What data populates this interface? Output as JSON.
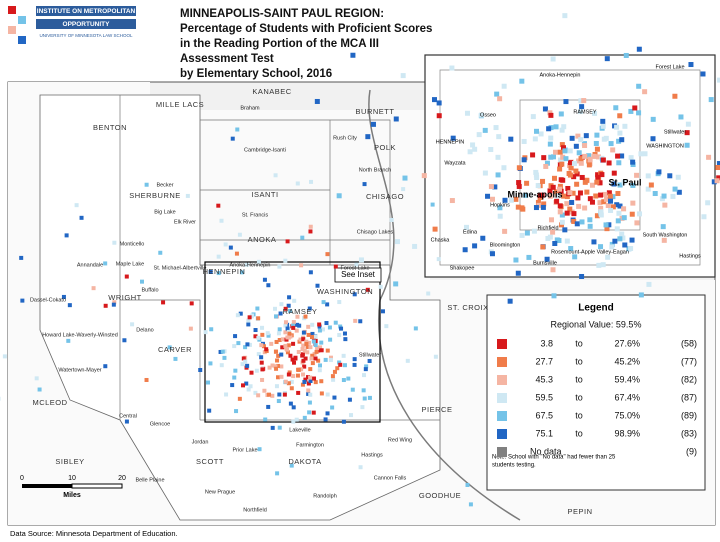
{
  "header": {
    "logo": [
      "INSTITUTE ON METROPOLITAN",
      "OPPORTUNITY",
      "UNIVERSITY OF MINNESOTA LAW SCHOOL"
    ],
    "title": [
      "MINNEAPOLIS-SAINT PAUL REGION:",
      "Percentage of Students with Proficient Scores",
      "in the Reading Portion of the MCA III",
      "Assessment Test",
      "by Elementary School, 2016"
    ]
  },
  "map": {
    "counties": [
      "MILLE LACS",
      "BENTON",
      "KANABEC",
      "BURNETT",
      "POLK",
      "ISANTI",
      "SHERBURNE",
      "CHISAGO",
      "ANOKA",
      "WRIGHT",
      "HENNEPIN",
      "RAMSEY",
      "WASHINGTON",
      "ST. CROIX",
      "CARVER",
      "MCLEOD",
      "SCOTT",
      "DAKOTA",
      "PIERCE",
      "SIBLEY",
      "GOODHUE",
      "PEPIN"
    ],
    "cities": [
      "Braham",
      "Rush City",
      "Cambridge-Isanti",
      "North Branch",
      "Becker",
      "Elk River",
      "Big Lake",
      "St. Francis",
      "Chisago Lakes",
      "Monticello",
      "Annandale",
      "Maple Lake",
      "Buffalo",
      "St. Michael-Albertville",
      "Delano",
      "Dassel-Cokato",
      "Howard Lake-Waverly-Winsted",
      "Watertown-Mayer",
      "Central",
      "Glencoe",
      "Belle Plaine",
      "New Prague",
      "Jordan",
      "Prior Lake",
      "Farmington",
      "Hastings",
      "Randolph",
      "Northfield",
      "Cannon Falls",
      "Red Wing",
      "Lakeville",
      "Forest Lake",
      "Stillwater",
      "Anoka-Hennepin"
    ],
    "see_inset": "See Inset",
    "inset_labels": [
      "Forest Lake",
      "Anoka-Hennepin",
      "RAMSEY",
      "HENNEPIN",
      "WASHINGTON",
      "Minne-apolis",
      "St. Paul",
      "Stillwater",
      "Osseo",
      "Wayzata",
      "Hopkins",
      "Edina",
      "Richfield",
      "Bloomington",
      "Burnsville",
      "Rosemount-Apple Valley-Eagan",
      "South Washington",
      "Hastings",
      "Shakopee",
      "Chaska"
    ],
    "scale": {
      "ticks": [
        "0",
        "10",
        "20"
      ],
      "unit": "Miles"
    }
  },
  "legend": {
    "title": "Legend",
    "regional": "Regional Value: 59.5%",
    "to": "to",
    "items": [
      {
        "color": "#d7191c",
        "low": "3.8",
        "high": "27.6%",
        "count": "(58)"
      },
      {
        "color": "#f07c4a",
        "low": "27.7",
        "high": "45.2%",
        "count": "(77)"
      },
      {
        "color": "#f5b5a3",
        "low": "45.3",
        "high": "59.4%",
        "count": "(82)"
      },
      {
        "color": "#cfe8f3",
        "low": "59.5",
        "high": "67.4%",
        "count": "(87)"
      },
      {
        "color": "#74c3e8",
        "low": "67.5",
        "high": "75.0%",
        "count": "(89)"
      },
      {
        "color": "#2166c4",
        "low": "75.1",
        "high": "98.9%",
        "count": "(83)"
      }
    ],
    "nodata": {
      "color": "#808080",
      "label": "No data",
      "count": "(9)"
    },
    "note": [
      "Note:  School with \"No data\" had fewer than 25",
      "students testing."
    ]
  },
  "source": "Data Source:  Minnesota Department of Education."
}
